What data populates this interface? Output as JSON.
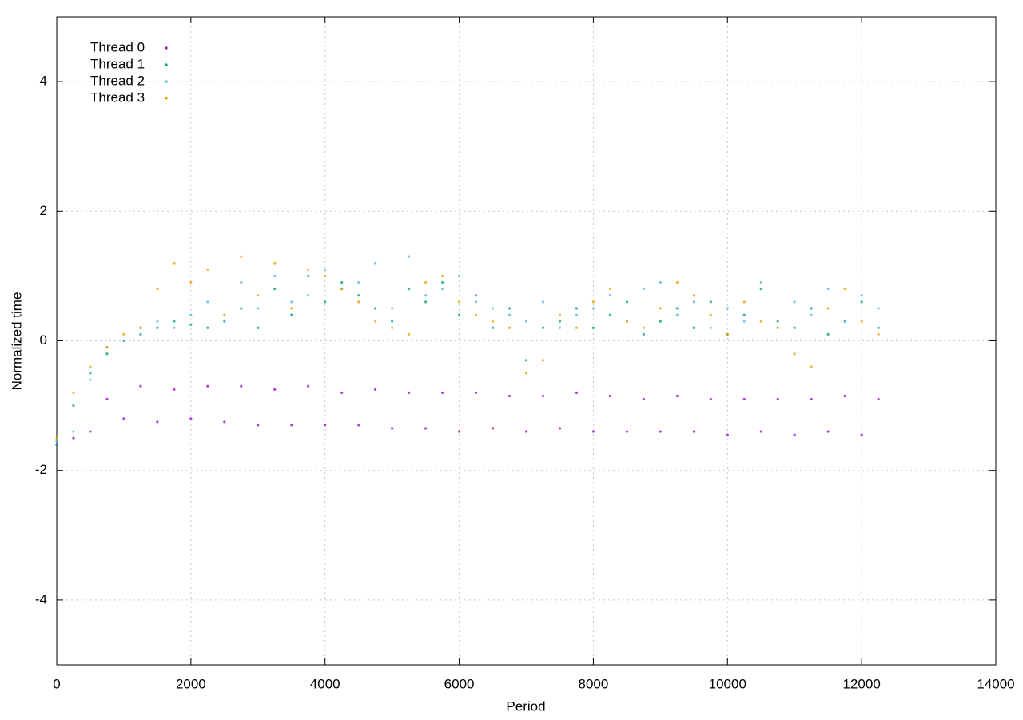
{
  "chart_data": {
    "type": "scatter",
    "xlabel": "Period",
    "ylabel": "Normalized time",
    "xlim": [
      0,
      14000
    ],
    "xticks": [
      0,
      2000,
      4000,
      6000,
      8000,
      10000,
      12000,
      14000
    ],
    "ylim": [
      -5,
      5
    ],
    "yticks": [
      -4,
      -2,
      0,
      2,
      4
    ],
    "grid": true,
    "legend": "top-left",
    "x": [
      0,
      250,
      500,
      750,
      1000,
      1250,
      1500,
      1750,
      2000,
      2250,
      2500,
      2750,
      3000,
      3250,
      3500,
      3750,
      4000,
      4250,
      4500,
      4750,
      5000,
      5250,
      5500,
      5750,
      6000,
      6250,
      6500,
      6750,
      7000,
      7250,
      7500,
      7750,
      8000,
      8250,
      8500,
      8750,
      9000,
      9250,
      9500,
      9750,
      10000,
      10250,
      10500,
      10750,
      11000,
      11250,
      11500,
      11750,
      12000,
      12250
    ],
    "series": [
      {
        "name": "Thread 0",
        "color": "#9400d3",
        "values": [
          -1.6,
          -1.5,
          -1.4,
          -0.9,
          -1.2,
          -0.7,
          -1.25,
          -0.75,
          -1.2,
          -0.7,
          -1.25,
          -0.7,
          -1.3,
          -0.75,
          -1.3,
          -0.7,
          -1.3,
          -0.8,
          -1.3,
          -0.75,
          -1.35,
          -0.8,
          -1.35,
          -0.8,
          -1.4,
          -0.8,
          -1.35,
          -0.85,
          -1.4,
          -0.85,
          -1.35,
          -0.8,
          -1.4,
          -0.85,
          -1.4,
          -0.9,
          -1.4,
          -0.85,
          -1.4,
          -0.9,
          -1.45,
          -0.9,
          -1.4,
          -0.9,
          -1.45,
          -0.9,
          -1.4,
          -0.85,
          -1.45,
          -0.9
        ]
      },
      {
        "name": "Thread 1",
        "color": "#009e73",
        "values": [
          -1.6,
          -1.0,
          -0.5,
          -0.2,
          0.0,
          0.1,
          0.2,
          0.3,
          0.25,
          0.2,
          0.3,
          0.5,
          0.2,
          0.8,
          0.4,
          1.0,
          0.6,
          0.9,
          0.7,
          0.5,
          0.3,
          0.8,
          0.6,
          0.9,
          0.4,
          0.7,
          0.2,
          0.5,
          -0.3,
          0.2,
          0.3,
          0.5,
          0.2,
          0.4,
          0.6,
          0.1,
          0.3,
          0.5,
          0.2,
          0.6,
          0.1,
          0.4,
          0.8,
          0.3,
          0.2,
          0.5,
          0.1,
          0.3,
          0.6,
          0.2
        ]
      },
      {
        "name": "Thread 2",
        "color": "#56b4e9",
        "values": [
          -1.55,
          -1.4,
          -0.6,
          -0.1,
          0.0,
          0.2,
          0.3,
          0.2,
          0.4,
          0.6,
          0.3,
          0.9,
          0.5,
          1.0,
          0.6,
          0.7,
          1.1,
          0.8,
          0.9,
          1.2,
          0.5,
          1.3,
          0.7,
          0.8,
          1.0,
          0.6,
          0.5,
          0.4,
          0.3,
          0.6,
          0.2,
          0.4,
          0.5,
          0.7,
          0.3,
          0.8,
          0.9,
          0.4,
          0.6,
          0.2,
          0.5,
          0.3,
          0.9,
          0.2,
          0.6,
          0.4,
          0.8,
          0.3,
          0.7,
          0.5
        ]
      },
      {
        "name": "Thread 3",
        "color": "#e69f00",
        "values": [
          -1.5,
          -0.8,
          -0.4,
          -0.1,
          0.1,
          0.2,
          0.8,
          1.2,
          0.9,
          1.1,
          0.4,
          1.3,
          0.7,
          1.2,
          0.5,
          1.1,
          1.0,
          0.8,
          0.6,
          0.3,
          0.2,
          0.1,
          0.9,
          1.0,
          0.6,
          0.4,
          0.3,
          0.2,
          -0.5,
          -0.3,
          0.4,
          0.2,
          0.6,
          0.8,
          0.3,
          0.2,
          0.5,
          0.9,
          0.7,
          0.4,
          0.1,
          0.6,
          0.3,
          0.2,
          -0.2,
          -0.4,
          0.5,
          0.8,
          0.3,
          0.1
        ]
      }
    ]
  }
}
